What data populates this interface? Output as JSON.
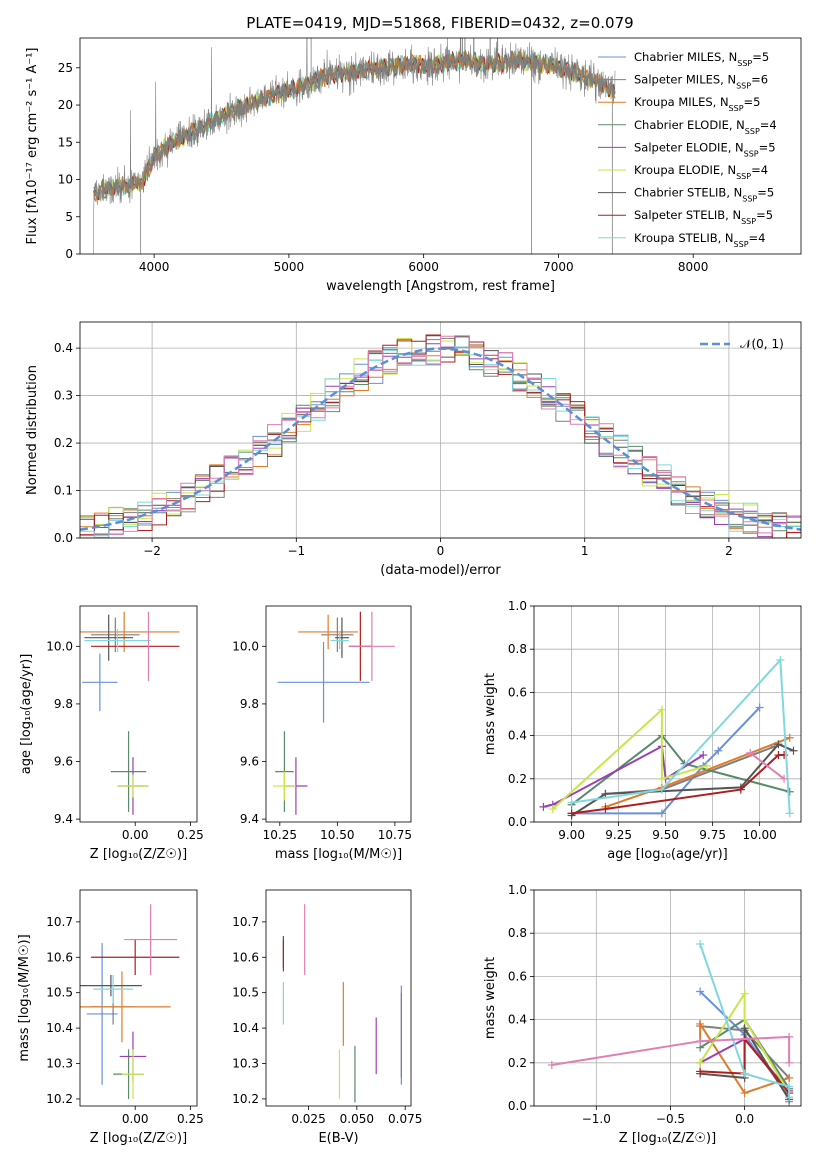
{
  "colors": {
    "chabrier_miles": "#6a8fdb",
    "salpeter_miles": "#7f7f7f",
    "kroupa_miles": "#e07b2a",
    "chabrier_elodie": "#5a8a6a",
    "salpeter_elodie": "#9b3fb5",
    "kroupa_elodie": "#c8e64a",
    "chabrier_stelib": "#555555",
    "salpeter_stelib": "#b01e1e",
    "kroupa_stelib": "#7fd8dc",
    "pink": "#e07fb0",
    "gaussian": "#5b8fd6"
  },
  "chart_data": [
    {
      "type": "line",
      "title": "PLATE=0419, MJD=51868, FIBERID=0432, z=0.079",
      "xlabel": "wavelength [Angstrom, rest frame]",
      "ylabel": "Flux [fλ10⁻¹⁷ erg cm⁻² s⁻¹ A⁻¹]",
      "xlim": [
        3450,
        8800
      ],
      "ylim": [
        0,
        29
      ],
      "xticks": [
        "4000",
        "5000",
        "6000",
        "7000",
        "8000"
      ],
      "yticks": [
        "0",
        "5",
        "10",
        "15",
        "20",
        "25"
      ],
      "series": [
        {
          "name": "Chabrier MILES, N_SSP=5"
        },
        {
          "name": "Salpeter MILES, N_SSP=6"
        },
        {
          "name": "Kroupa MILES, N_SSP=5"
        },
        {
          "name": "Chabrier ELODIE, N_SSP=4"
        },
        {
          "name": "Salpeter ELODIE, N_SSP=5"
        },
        {
          "name": "Kroupa ELODIE, N_SSP=4"
        },
        {
          "name": "Chabrier STELIB, N_SSP=5"
        },
        {
          "name": "Salpeter STELIB, N_SSP=5"
        },
        {
          "name": "Kroupa STELIB, N_SSP=4"
        }
      ],
      "continuum": {
        "x": [
          3550,
          3700,
          3900,
          4000,
          4100,
          4300,
          4500,
          4700,
          4900,
          5100,
          5300,
          5500,
          5700,
          5900,
          6100,
          6300,
          6500,
          6700,
          6900,
          7100,
          7300,
          7500
        ],
        "y": [
          8,
          9,
          9.5,
          13,
          14.5,
          16.5,
          18.5,
          20,
          21.5,
          22.5,
          24,
          24.5,
          25,
          25.5,
          25.5,
          26,
          25.5,
          26,
          25.5,
          24.5,
          23,
          21
        ]
      }
    },
    {
      "type": "step",
      "xlabel": "(data-model)/error",
      "ylabel": "Normed distribution",
      "xlim": [
        -2.5,
        2.5
      ],
      "ylim": [
        0,
        0.455
      ],
      "xticks": [
        "−2",
        "−1",
        "0",
        "1",
        "2"
      ],
      "yticks": [
        "0.0",
        "0.1",
        "0.2",
        "0.3",
        "0.4"
      ],
      "legend": "𝒩(0, 1)",
      "bin_width": 0.1
    },
    {
      "type": "errorbar",
      "xlabel": "Z [log₁₀(Z/Z☉)]",
      "ylabel": "age  [log₁₀(age/yr)]",
      "xlim": [
        -0.25,
        0.28
      ],
      "ylim": [
        9.39,
        10.14
      ],
      "xticks": [
        "0.00",
        "0.25"
      ],
      "yticks": [
        "9.4",
        "9.6",
        "9.8",
        "10.0"
      ],
      "points": [
        {
          "c": "chabrier_miles",
          "x": -0.16,
          "y": 9.875,
          "xe": 0.08,
          "ye": 0.1
        },
        {
          "c": "salpeter_miles",
          "x": -0.09,
          "y": 10.04,
          "xe": 0.11,
          "ye": 0.06
        },
        {
          "c": "kroupa_miles",
          "x": -0.05,
          "y": 10.05,
          "xe": 0.25,
          "ye": 0.07
        },
        {
          "c": "chabrier_elodie",
          "x": -0.03,
          "y": 9.565,
          "xe": 0.08,
          "ye": 0.14
        },
        {
          "c": "salpeter_elodie",
          "x": -0.01,
          "y": 9.515,
          "xe": 0.07,
          "ye": 0.1
        },
        {
          "c": "kroupa_elodie",
          "x": -0.01,
          "y": 9.515,
          "xe": 0.07,
          "ye": 0.04
        },
        {
          "c": "chabrier_stelib",
          "x": -0.12,
          "y": 10.03,
          "xe": 0.11,
          "ye": 0.08
        },
        {
          "c": "salpeter_stelib",
          "x": 0.0,
          "y": 10.0,
          "xe": 0.2,
          "ye": 0.0
        },
        {
          "c": "kroupa_stelib",
          "x": -0.08,
          "y": 10.02,
          "xe": 0.15,
          "ye": 0.04
        },
        {
          "c": "pink",
          "x": 0.06,
          "y": 10.0,
          "xe": 0.0,
          "ye": 0.12
        }
      ]
    },
    {
      "type": "errorbar",
      "xlabel": "mass [log₁₀(M/M☉)]",
      "ylabel": "",
      "xlim": [
        10.19,
        10.82
      ],
      "ylim": [
        9.39,
        10.14
      ],
      "xticks": [
        "10.25",
        "10.50",
        "10.75"
      ],
      "yticks": [
        "9.4",
        "9.6",
        "9.8",
        "10.0"
      ],
      "points": [
        {
          "c": "chabrier_miles",
          "x": 10.44,
          "y": 9.875,
          "xe": 0.2,
          "ye": 0.14
        },
        {
          "c": "salpeter_miles",
          "x": 10.5,
          "y": 10.04,
          "xe": 0.07,
          "ye": 0.06
        },
        {
          "c": "kroupa_miles",
          "x": 10.46,
          "y": 10.05,
          "xe": 0.13,
          "ye": 0.06
        },
        {
          "c": "chabrier_elodie",
          "x": 10.27,
          "y": 9.565,
          "xe": 0.04,
          "ye": 0.14
        },
        {
          "c": "salpeter_elodie",
          "x": 10.32,
          "y": 9.515,
          "xe": 0.05,
          "ye": 0.1
        },
        {
          "c": "kroupa_elodie",
          "x": 10.27,
          "y": 9.515,
          "xe": 0.05,
          "ye": 0.05
        },
        {
          "c": "chabrier_stelib",
          "x": 10.52,
          "y": 10.03,
          "xe": 0.03,
          "ye": 0.07
        },
        {
          "c": "salpeter_stelib",
          "x": 10.6,
          "y": 10.0,
          "xe": 0.05,
          "ye": 0.12
        },
        {
          "c": "kroupa_stelib",
          "x": 10.51,
          "y": 10.02,
          "xe": 0.04,
          "ye": 0.03
        },
        {
          "c": "pink",
          "x": 10.65,
          "y": 10.0,
          "xe": 0.1,
          "ye": 0.12
        }
      ]
    },
    {
      "type": "line",
      "xlabel": "age  [log₁₀(age/yr)]",
      "ylabel": "mass weight",
      "xlim": [
        8.8,
        10.22
      ],
      "ylim": [
        0,
        1
      ],
      "xticks": [
        "9.00",
        "9.25",
        "9.50",
        "9.75",
        "10.00"
      ],
      "yticks": [
        "0.0",
        "0.2",
        "0.4",
        "0.6",
        "0.8",
        "1.0"
      ],
      "series": [
        {
          "c": "chabrier_miles",
          "x": [
            9.0,
            9.48,
            9.7,
            9.78,
            10.0
          ],
          "y": [
            0.04,
            0.04,
            0.26,
            0.33,
            0.53
          ]
        },
        {
          "c": "salpeter_miles",
          "x": [
            9.18,
            9.48,
            10.08
          ],
          "y": [
            0.13,
            0.15,
            0.35
          ]
        },
        {
          "c": "kroupa_miles",
          "x": [
            9.18,
            9.48,
            10.16
          ],
          "y": [
            0.07,
            0.16,
            0.39
          ]
        },
        {
          "c": "chabrier_elodie",
          "x": [
            9.0,
            9.48,
            9.6,
            10.16
          ],
          "y": [
            0.08,
            0.4,
            0.27,
            0.14
          ]
        },
        {
          "c": "salpeter_elodie",
          "x": [
            8.85,
            8.9,
            9.48,
            9.5,
            9.7
          ],
          "y": [
            0.07,
            0.08,
            0.35,
            0.2,
            0.31
          ]
        },
        {
          "c": "kroupa_elodie",
          "x": [
            8.9,
            9.48,
            9.48,
            9.72
          ],
          "y": [
            0.06,
            0.52,
            0.2,
            0.26
          ]
        },
        {
          "c": "chabrier_stelib",
          "x": [
            9.0,
            9.18,
            9.9,
            10.1,
            10.18
          ],
          "y": [
            0.03,
            0.13,
            0.16,
            0.36,
            0.33
          ]
        },
        {
          "c": "salpeter_stelib",
          "x": [
            9.0,
            9.18,
            9.9,
            10.1,
            10.13
          ],
          "y": [
            0.04,
            0.06,
            0.15,
            0.31,
            0.31
          ]
        },
        {
          "c": "kroupa_stelib",
          "x": [
            9.0,
            9.48,
            10.11,
            10.16
          ],
          "y": [
            0.09,
            0.15,
            0.75,
            0.04
          ]
        },
        {
          "c": "pink",
          "x": [
            9.95,
            10.13
          ],
          "y": [
            0.32,
            0.2
          ]
        }
      ]
    },
    {
      "type": "errorbar",
      "xlabel": "Z [log₁₀(Z/Z☉)]",
      "ylabel": "mass [log₁₀(M/M☉)]",
      "xlim": [
        -0.25,
        0.28
      ],
      "ylim": [
        10.18,
        10.79
      ],
      "xticks": [
        "0.00",
        "0.25"
      ],
      "yticks": [
        "10.2",
        "10.3",
        "10.4",
        "10.5",
        "10.6",
        "10.7"
      ],
      "points": [
        {
          "c": "chabrier_miles",
          "x": -0.15,
          "y": 10.44,
          "xe": 0.07,
          "ye": 0.2
        },
        {
          "c": "salpeter_miles",
          "x": -0.1,
          "y": 10.46,
          "xe": 0.1,
          "ye": 0.05
        },
        {
          "c": "kroupa_miles",
          "x": -0.06,
          "y": 10.46,
          "xe": 0.22,
          "ye": 0.1
        },
        {
          "c": "chabrier_elodie",
          "x": -0.03,
          "y": 10.27,
          "xe": 0.07,
          "ye": 0.07
        },
        {
          "c": "salpeter_elodie",
          "x": -0.01,
          "y": 10.32,
          "xe": 0.06,
          "ye": 0.07
        },
        {
          "c": "kroupa_elodie",
          "x": -0.01,
          "y": 10.27,
          "xe": 0.05,
          "ye": 0.07
        },
        {
          "c": "chabrier_stelib",
          "x": -0.11,
          "y": 10.52,
          "xe": 0.14,
          "ye": 0.03
        },
        {
          "c": "salpeter_stelib",
          "x": 0.0,
          "y": 10.6,
          "xe": 0.2,
          "ye": 0.05
        },
        {
          "c": "kroupa_stelib",
          "x": -0.1,
          "y": 10.51,
          "xe": 0.09,
          "ye": 0.04
        },
        {
          "c": "pink",
          "x": 0.07,
          "y": 10.65,
          "xe": 0.12,
          "ye": 0.1
        }
      ]
    },
    {
      "type": "errorbar",
      "xlabel": "E(B-V)",
      "ylabel": "",
      "xlim": [
        0.003,
        0.078
      ],
      "ylim": [
        10.18,
        10.79
      ],
      "xticks": [
        "0.025",
        "0.050",
        "0.075"
      ],
      "yticks": [
        "10.2",
        "10.3",
        "10.4",
        "10.5",
        "10.6",
        "10.7"
      ],
      "points": [
        {
          "c": "chabrier_miles",
          "x": 0.073,
          "y": 10.38,
          "xe": 0,
          "ye": 0.14
        },
        {
          "c": "salpeter_miles",
          "x": 0.073,
          "y": 10.38,
          "xe": 0,
          "ye": 0.12
        },
        {
          "c": "kroupa_miles",
          "x": 0.043,
          "y": 10.44,
          "xe": 0,
          "ye": 0.09
        },
        {
          "c": "chabrier_elodie",
          "x": 0.049,
          "y": 10.27,
          "xe": 0,
          "ye": 0.08
        },
        {
          "c": "salpeter_elodie",
          "x": 0.06,
          "y": 10.35,
          "xe": 0,
          "ye": 0.08
        },
        {
          "c": "kroupa_elodie",
          "x": 0.041,
          "y": 10.27,
          "xe": 0,
          "ye": 0.07
        },
        {
          "c": "chabrier_stelib",
          "x": 0.012,
          "y": 10.61,
          "xe": 0,
          "ye": 0.05
        },
        {
          "c": "salpeter_stelib",
          "x": 0.012,
          "y": 10.61,
          "xe": 0,
          "ye": 0.04
        },
        {
          "c": "kroupa_stelib",
          "x": 0.012,
          "y": 10.47,
          "xe": 0,
          "ye": 0.06
        },
        {
          "c": "pink",
          "x": 0.023,
          "y": 10.65,
          "xe": 0,
          "ye": 0.1
        }
      ]
    },
    {
      "type": "line",
      "xlabel": "Z [log₁₀(Z/Z☉)]",
      "ylabel": "mass weight",
      "xlim": [
        -1.42,
        0.38
      ],
      "ylim": [
        0,
        1
      ],
      "xticks": [
        "−1.0",
        "−0.5",
        "0.0"
      ],
      "yticks": [
        "0.0",
        "0.2",
        "0.4",
        "0.6",
        "0.8",
        "1.0"
      ],
      "series": [
        {
          "c": "chabrier_miles",
          "x": [
            -0.3,
            0.0,
            0.3,
            0.3
          ],
          "y": [
            0.53,
            0.33,
            0.04,
            0.02
          ]
        },
        {
          "c": "salpeter_miles",
          "x": [
            -0.3,
            0.0,
            0.3
          ],
          "y": [
            0.37,
            0.35,
            0.13
          ]
        },
        {
          "c": "kroupa_miles",
          "x": [
            -0.3,
            -0.3,
            0.0,
            0.3
          ],
          "y": [
            0.3,
            0.38,
            0.06,
            0.13
          ]
        },
        {
          "c": "chabrier_elodie",
          "x": [
            -0.3,
            0.0,
            0.3
          ],
          "y": [
            0.27,
            0.4,
            0.08
          ]
        },
        {
          "c": "salpeter_elodie",
          "x": [
            -0.3,
            0.0,
            0.3
          ],
          "y": [
            0.2,
            0.31,
            0.07
          ]
        },
        {
          "c": "kroupa_elodie",
          "x": [
            -0.3,
            0.0,
            0.0,
            0.3
          ],
          "y": [
            0.2,
            0.52,
            0.4,
            0.06
          ]
        },
        {
          "c": "chabrier_stelib",
          "x": [
            -0.3,
            0.0,
            0.0,
            0.3
          ],
          "y": [
            0.15,
            0.13,
            0.36,
            0.03
          ]
        },
        {
          "c": "salpeter_stelib",
          "x": [
            -0.3,
            0.0,
            0.0,
            0.3
          ],
          "y": [
            0.16,
            0.15,
            0.31,
            0.06
          ]
        },
        {
          "c": "kroupa_stelib",
          "x": [
            -0.3,
            0.0,
            0.3,
            0.3
          ],
          "y": [
            0.75,
            0.15,
            0.09,
            0.04
          ]
        },
        {
          "c": "pink",
          "x": [
            -1.3,
            -0.3,
            0.3,
            0.3
          ],
          "y": [
            0.19,
            0.3,
            0.32,
            0.2
          ]
        }
      ]
    }
  ]
}
